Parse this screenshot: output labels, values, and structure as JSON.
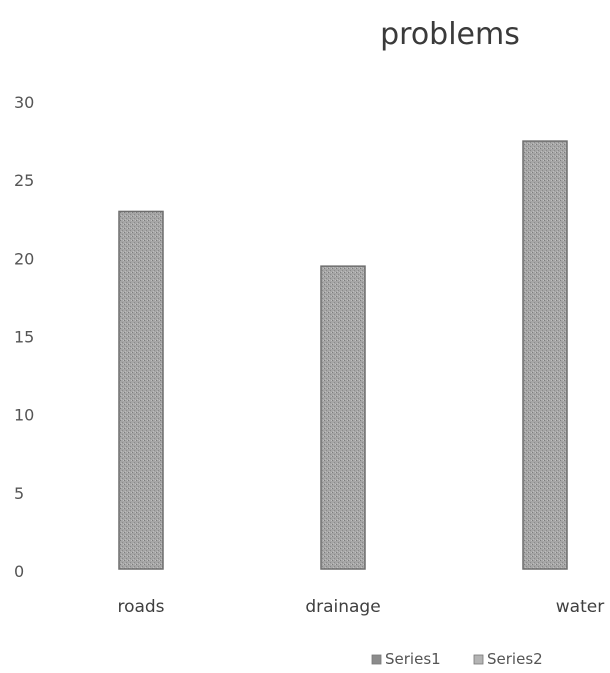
{
  "chart_data": {
    "type": "bar",
    "title": "problems",
    "xlabel": "",
    "ylabel": "",
    "categories": [
      "roads",
      "drainage",
      "water"
    ],
    "series": [
      {
        "name": "Series1",
        "values": [
          23,
          19.5,
          27.5
        ],
        "color": "#8c8c8c"
      },
      {
        "name": "Series2",
        "values": [
          null,
          null,
          null
        ],
        "color": "#b4b4b4"
      }
    ],
    "ylim": [
      0,
      30
    ],
    "yticks": [
      "0",
      "5",
      "10",
      "15",
      "20",
      "25",
      "30"
    ],
    "grid": false,
    "legend": "bottom-right"
  },
  "colors": {
    "bar_fill": "#a3a3a3",
    "bar_stroke": "#6e6e6e",
    "text": "#3f3f3f"
  }
}
